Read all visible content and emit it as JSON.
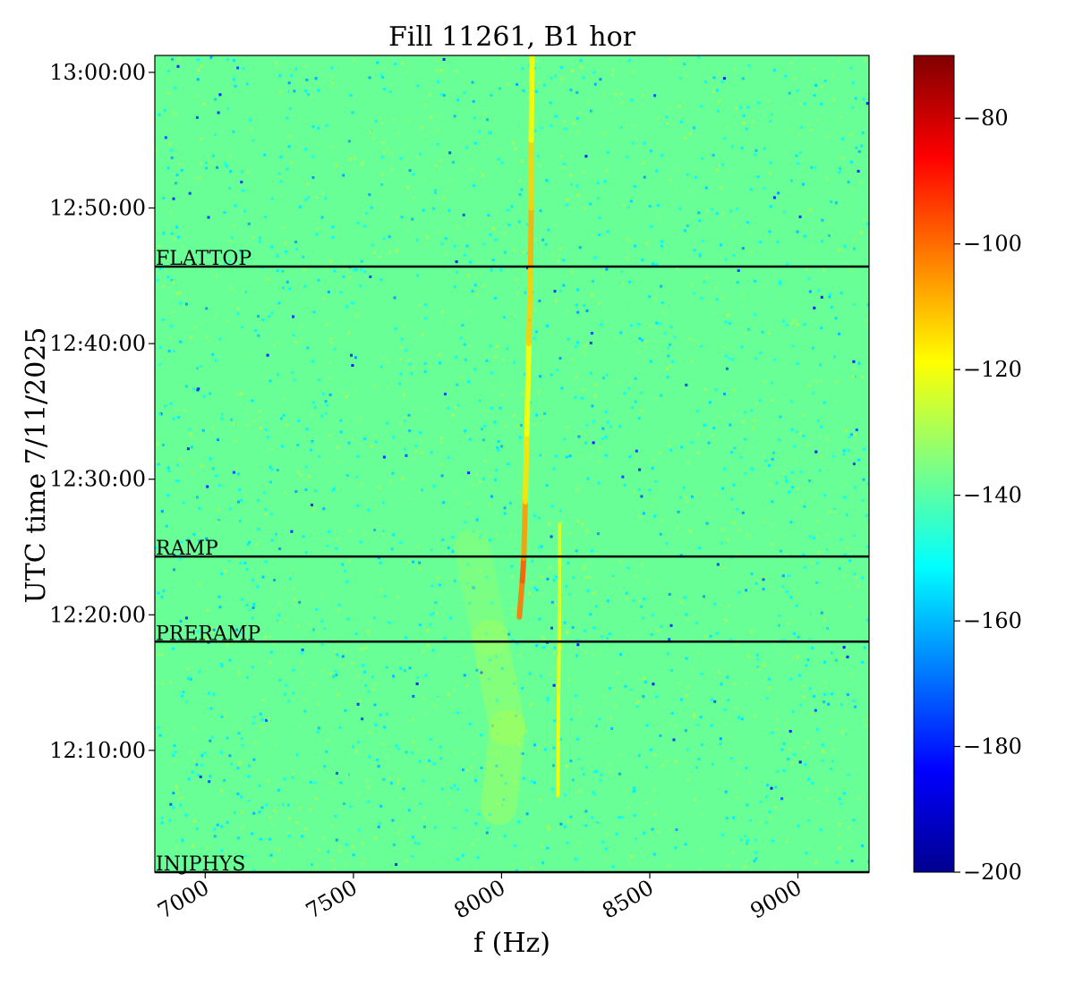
{
  "chart_data": {
    "type": "heatmap",
    "title": "Fill 11261, B1 hor",
    "xlabel": "f (Hz)",
    "ylabel": "UTC time 7/11/2025",
    "xlim": [
      6830,
      9240
    ],
    "ylim_seconds_after_noon": [
      61,
      3675
    ],
    "x_ticks": [
      {
        "value": 7000,
        "label": "7000"
      },
      {
        "value": 7500,
        "label": "7500"
      },
      {
        "value": 8000,
        "label": "8000"
      },
      {
        "value": 8500,
        "label": "8500"
      },
      {
        "value": 9000,
        "label": "9000"
      }
    ],
    "y_ticks": [
      {
        "value": 600,
        "label": "12:10:00"
      },
      {
        "value": 1200,
        "label": "12:20:00"
      },
      {
        "value": 1800,
        "label": "12:30:00"
      },
      {
        "value": 2400,
        "label": "12:40:00"
      },
      {
        "value": 3000,
        "label": "12:50:00"
      },
      {
        "value": 3600,
        "label": "13:00:00"
      }
    ],
    "colorbar": {
      "colormap": "jet",
      "vmin": -200,
      "vmax": -70,
      "ticks": [
        {
          "value": -80,
          "label": "−80"
        },
        {
          "value": -100,
          "label": "−100"
        },
        {
          "value": -120,
          "label": "−120"
        },
        {
          "value": -140,
          "label": "−140"
        },
        {
          "value": -160,
          "label": "−160"
        },
        {
          "value": -180,
          "label": "−180"
        },
        {
          "value": -200,
          "label": "−200"
        }
      ]
    },
    "background_level": -138,
    "events": [
      {
        "label": "INJPHYS",
        "value": 61
      },
      {
        "label": "PRERAMP",
        "value": 1081
      },
      {
        "label": "RAMP",
        "value": 1458
      },
      {
        "label": "FLATTOP",
        "value": 2741
      }
    ],
    "features": [
      {
        "name": "main line",
        "points": [
          [
            8060,
            1190,
            -108
          ],
          [
            8070,
            1350,
            -95
          ],
          [
            8075,
            1450,
            -100
          ],
          [
            8080,
            1700,
            -112
          ],
          [
            8085,
            2000,
            -118
          ],
          [
            8092,
            2400,
            -120
          ],
          [
            8098,
            2750,
            -105
          ],
          [
            8100,
            3000,
            -112
          ],
          [
            8100,
            3300,
            -114
          ],
          [
            8103,
            3675,
            -122
          ]
        ]
      },
      {
        "name": "secondary line",
        "points": [
          [
            8190,
            400,
            -118
          ],
          [
            8192,
            800,
            -120
          ],
          [
            8195,
            1200,
            -120
          ],
          [
            8195,
            1600,
            -124
          ]
        ]
      },
      {
        "name": "broad band",
        "points": [
          [
            7990,
            350,
            -128
          ],
          [
            8020,
            700,
            -126
          ],
          [
            7960,
            1100,
            -130
          ],
          [
            7900,
            1500,
            -132
          ]
        ]
      }
    ]
  }
}
